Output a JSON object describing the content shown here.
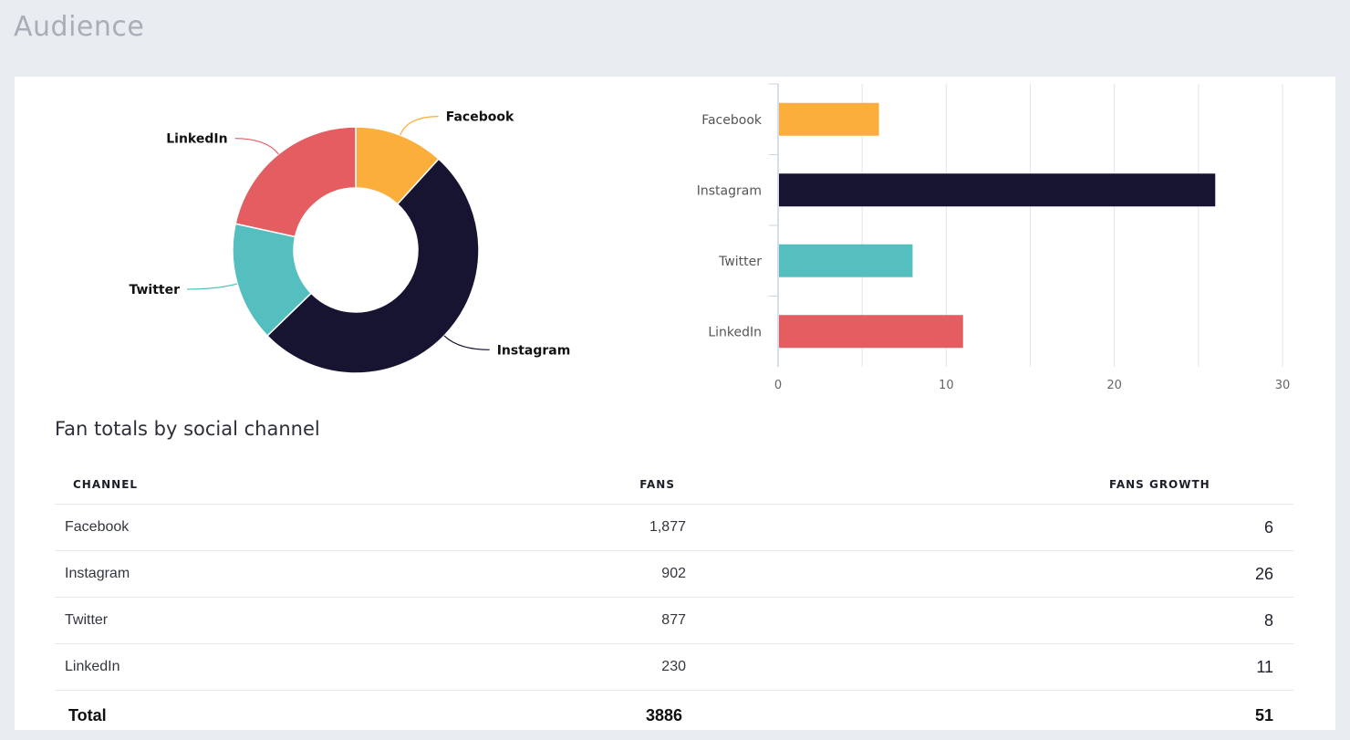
{
  "page": {
    "title": "Audience"
  },
  "chart_data": [
    {
      "type": "pie",
      "donut": true,
      "slices": [
        {
          "label": "Facebook",
          "value": 6,
          "color": "#fbae3c"
        },
        {
          "label": "Instagram",
          "value": 26,
          "color": "#161430"
        },
        {
          "label": "Twitter",
          "value": 8,
          "color": "#55bfc0"
        },
        {
          "label": "LinkedIn",
          "value": 11,
          "color": "#e35d61"
        }
      ]
    },
    {
      "type": "bar",
      "orientation": "horizontal",
      "categories": [
        "Facebook",
        "Instagram",
        "Twitter",
        "LinkedIn"
      ],
      "values": [
        6,
        26,
        8,
        11
      ],
      "colors": [
        "#fbae3c",
        "#161430",
        "#55bfc0",
        "#e35d61"
      ],
      "xlim": [
        0,
        30
      ],
      "x_ticks": [
        "0",
        "10",
        "20",
        "30"
      ],
      "grid": true
    }
  ],
  "table": {
    "title": "Fan totals by social channel",
    "headers": {
      "channel": "CHANNEL",
      "fans": "FANS",
      "growth": "FANS GROWTH"
    },
    "rows": [
      {
        "channel": "Facebook",
        "fans": "1,877",
        "growth": "6"
      },
      {
        "channel": "Instagram",
        "fans": "902",
        "growth": "26"
      },
      {
        "channel": "Twitter",
        "fans": "877",
        "growth": "8"
      },
      {
        "channel": "LinkedIn",
        "fans": "230",
        "growth": "11"
      }
    ],
    "total": {
      "label": "Total",
      "fans": "3886",
      "growth": "51"
    }
  }
}
